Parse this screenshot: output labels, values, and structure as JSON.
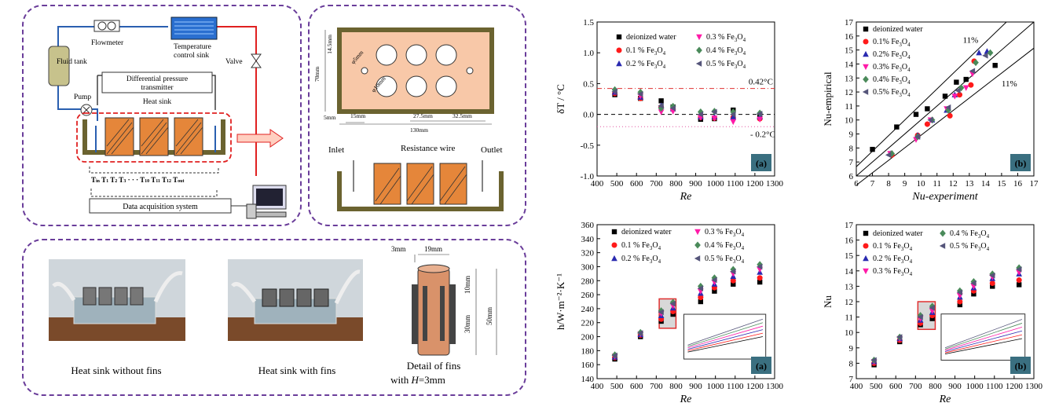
{
  "system": {
    "flowmeter": "Flowmeter",
    "temp_sink": [
      "Temperature",
      "control sink"
    ],
    "valve": "Valve",
    "fluid_tank": "Fluid tank",
    "pump": "Pump",
    "dp_transmitter": [
      "Differential pressure",
      "transmitter"
    ],
    "heat_sink": "Heat sink",
    "thermocouples": "T",
    "daq": "Data acquisition system"
  },
  "dims": {
    "d14": "14.5mm",
    "d5": "5mm",
    "d70": "70mm",
    "phi5": "φ5mm",
    "phi10": "φ10mm",
    "d5b": "5mm",
    "d15": "15mm",
    "d27": "27.5mm",
    "d32": "32.5mm",
    "d130": "130mm",
    "inlet": "Inlet",
    "wire": "Resistance  wire",
    "outlet": "Outlet"
  },
  "photos": {
    "cap1": "Heat sink without fins",
    "cap2": "Heat sink with fins",
    "cap3a": "Detail of fins",
    "cap3b": "with",
    "cap3c": "H",
    "cap3d": "=3mm",
    "d3": "3mm",
    "d19": "19mm",
    "d10": "10mm",
    "d30": "30mm",
    "d50": "50mm"
  },
  "colors": {
    "water": "#000000",
    "fe01": "#ff1a1a",
    "fe02": "#2a2ab0",
    "fe03": "#ff1aa8",
    "fe04": "#4a8a5a",
    "fe05": "#55557a",
    "panel_border": "#6a3d9a",
    "tag_bg": "#3a6f80"
  },
  "chart_data": [
    {
      "id": "dT",
      "type": "scatter",
      "tag": "(a)",
      "xlabel": "Re",
      "ylabel": "δT / °C",
      "xlim": [
        400,
        1300
      ],
      "ylim": [
        -1.0,
        1.5
      ],
      "xticks": [
        "400",
        "500",
        "600",
        "700",
        "800",
        "900",
        "1000",
        "1100",
        "1200",
        "1300"
      ],
      "yticks": [
        "-1.0",
        "-0.5",
        "0.0",
        "0.5",
        "1.0",
        "1.5"
      ],
      "annotations": [
        "0.42°C",
        "- 0.2°C"
      ],
      "series": [
        {
          "name": "deionized water",
          "x": [
            490,
            620,
            725,
            785,
            925,
            995,
            1090,
            1225
          ],
          "y": [
            0.32,
            0.26,
            0.22,
            0.12,
            -0.08,
            -0.07,
            0.07,
            -0.03
          ]
        },
        {
          "name": "0.1 % Fe3O4",
          "x": [
            490,
            620,
            725,
            785,
            925,
            995,
            1090,
            1225
          ],
          "y": [
            0.34,
            0.26,
            0.12,
            0.08,
            -0.05,
            -0.06,
            -0.05,
            -0.07
          ]
        },
        {
          "name": "0.2 % Fe3O4",
          "x": [
            490,
            620,
            725,
            785,
            925,
            995,
            1090,
            1225
          ],
          "y": [
            0.36,
            0.28,
            0.14,
            0.09,
            -0.04,
            -0.04,
            -0.04,
            -0.04
          ]
        },
        {
          "name": "0.3 % Fe3O4",
          "x": [
            490,
            620,
            725,
            785,
            925,
            995,
            1090,
            1225
          ],
          "y": [
            0.38,
            0.3,
            0.04,
            0.05,
            -0.05,
            -0.06,
            -0.12,
            -0.08
          ]
        },
        {
          "name": "0.4 % Fe3O4",
          "x": [
            490,
            620,
            725,
            785,
            925,
            995,
            1090,
            1225
          ],
          "y": [
            0.4,
            0.36,
            0.1,
            0.13,
            0.04,
            0.05,
            0.04,
            0.02
          ]
        },
        {
          "name": "0.5 % Fe3O4",
          "x": [
            490,
            620,
            725,
            785,
            925,
            995,
            1090,
            1225
          ],
          "y": [
            0.37,
            0.33,
            0.14,
            0.1,
            0.0,
            0.04,
            0.0,
            0.01
          ]
        }
      ]
    },
    {
      "id": "nuEmp",
      "type": "scatter",
      "tag": "(b)",
      "xlabel": "Nu-experiment",
      "ylabel": "Nu-empirical",
      "xlim": [
        6,
        17
      ],
      "ylim": [
        6,
        17
      ],
      "xticks": [
        "6",
        "7",
        "8",
        "9",
        "10",
        "11",
        "12",
        "13",
        "14",
        "15",
        "16",
        "17"
      ],
      "yticks": [
        "6",
        "7",
        "8",
        "9",
        "10",
        "11",
        "12",
        "13",
        "14",
        "15",
        "16",
        "17"
      ],
      "annotations": [
        "11%",
        "11%"
      ],
      "series": [
        {
          "name": "deionized water",
          "x": [
            7.0,
            8.5,
            9.7,
            10.4,
            11.5,
            12.2,
            12.8,
            14.6
          ],
          "y": [
            7.9,
            9.5,
            10.4,
            10.8,
            11.7,
            12.7,
            12.9,
            13.9
          ]
        },
        {
          "name": "0.1% Fe3O4",
          "x": [
            8.2,
            9.8,
            10.4,
            11.8,
            12.4,
            13.1,
            13.3
          ],
          "y": [
            7.5,
            8.9,
            9.7,
            10.3,
            11.8,
            12.5,
            14.2
          ]
        },
        {
          "name": "0.2% Fe3O4",
          "x": [
            8.1,
            9.8,
            10.7,
            11.6,
            12.1,
            13.6,
            14.1
          ],
          "y": [
            7.6,
            8.9,
            10.0,
            10.7,
            11.8,
            14.8,
            14.9
          ]
        },
        {
          "name": "0.3% Fe3O4",
          "x": [
            8.1,
            9.7,
            10.6,
            11.6,
            12.1,
            12.8,
            13.2
          ],
          "y": [
            7.6,
            8.6,
            10.0,
            10.8,
            11.7,
            12.3,
            13.3
          ]
        },
        {
          "name": "0.4% Fe3O4",
          "x": [
            8.2,
            9.8,
            10.7,
            11.7,
            12.5,
            13.4,
            14.3
          ],
          "y": [
            7.6,
            8.8,
            10.0,
            10.7,
            12.3,
            14.1,
            14.8
          ]
        },
        {
          "name": "0.5% Fe3O4",
          "x": [
            8.0,
            9.8,
            10.6,
            11.7,
            12.3,
            13.2,
            14.0
          ],
          "y": [
            7.5,
            8.8,
            10.0,
            10.9,
            12.1,
            13.5,
            14.6
          ]
        }
      ]
    },
    {
      "id": "h",
      "type": "scatter",
      "tag": "(a)",
      "xlabel": "Re",
      "ylabel": "h/W·m⁻²·K⁻¹",
      "xlim": [
        400,
        1300
      ],
      "ylim": [
        140,
        360
      ],
      "xticks": [
        "400",
        "500",
        "600",
        "700",
        "800",
        "900",
        "1000",
        "1100",
        "1200",
        "1300"
      ],
      "yticks": [
        "140",
        "160",
        "180",
        "200",
        "220",
        "240",
        "260",
        "280",
        "300",
        "320",
        "340",
        "360"
      ],
      "series": [
        {
          "name": "deionized water",
          "x": [
            490,
            620,
            725,
            785,
            925,
            995,
            1090,
            1225
          ],
          "y": [
            168,
            200,
            222,
            232,
            250,
            265,
            275,
            278
          ]
        },
        {
          "name": "0.1 % Fe3O4",
          "x": [
            490,
            620,
            725,
            785,
            925,
            995,
            1090,
            1225
          ],
          "y": [
            170,
            202,
            225,
            236,
            256,
            270,
            280,
            284
          ]
        },
        {
          "name": "0.2 % Fe3O4",
          "x": [
            490,
            620,
            725,
            785,
            925,
            995,
            1090,
            1225
          ],
          "y": [
            171,
            203,
            230,
            241,
            262,
            275,
            286,
            292
          ]
        },
        {
          "name": "0.3 % Fe3O4",
          "x": [
            490,
            620,
            725,
            785,
            925,
            995,
            1090,
            1225
          ],
          "y": [
            172,
            204,
            233,
            244,
            265,
            278,
            290,
            296
          ]
        },
        {
          "name": "0.4 % Fe3O4",
          "x": [
            490,
            620,
            725,
            785,
            925,
            995,
            1090,
            1225
          ],
          "y": [
            174,
            206,
            237,
            249,
            272,
            284,
            296,
            303
          ]
        },
        {
          "name": "0.5 % Fe3O4",
          "x": [
            490,
            620,
            725,
            785,
            925,
            995,
            1090,
            1225
          ],
          "y": [
            173,
            205,
            235,
            247,
            269,
            281,
            293,
            300
          ]
        }
      ]
    },
    {
      "id": "nu",
      "type": "scatter",
      "tag": "(b)",
      "xlabel": "Re",
      "ylabel": "Nu",
      "xlim": [
        400,
        1300
      ],
      "ylim": [
        7,
        17
      ],
      "xticks": [
        "400",
        "500",
        "600",
        "700",
        "800",
        "900",
        "1000",
        "1100",
        "1200",
        "1300"
      ],
      "yticks": [
        "7",
        "8",
        "9",
        "10",
        "11",
        "12",
        "13",
        "14",
        "15",
        "16",
        "17"
      ],
      "series": [
        {
          "name": "deionized water",
          "x": [
            490,
            620,
            725,
            785,
            925,
            995,
            1090,
            1225
          ],
          "y": [
            7.9,
            9.4,
            10.5,
            10.9,
            11.8,
            12.5,
            13.0,
            13.1
          ]
        },
        {
          "name": "0.1 % Fe3O4",
          "x": [
            490,
            620,
            725,
            785,
            925,
            995,
            1090,
            1225
          ],
          "y": [
            8.0,
            9.5,
            10.6,
            11.1,
            12.0,
            12.7,
            13.2,
            13.4
          ]
        },
        {
          "name": "0.2 % Fe3O4",
          "x": [
            490,
            620,
            725,
            785,
            925,
            995,
            1090,
            1225
          ],
          "y": [
            8.1,
            9.6,
            10.8,
            11.3,
            12.3,
            12.9,
            13.5,
            13.8
          ]
        },
        {
          "name": "0.3 % Fe3O4",
          "x": [
            490,
            620,
            725,
            785,
            925,
            995,
            1090,
            1225
          ],
          "y": [
            8.1,
            9.6,
            10.9,
            11.4,
            12.4,
            13.0,
            13.6,
            13.9
          ]
        },
        {
          "name": "0.4 % Fe3O4",
          "x": [
            490,
            620,
            725,
            785,
            925,
            995,
            1090,
            1225
          ],
          "y": [
            8.2,
            9.7,
            11.1,
            11.7,
            12.7,
            13.3,
            13.8,
            14.2
          ]
        },
        {
          "name": "0.5 % Fe3O4",
          "x": [
            490,
            620,
            725,
            785,
            925,
            995,
            1090,
            1225
          ],
          "y": [
            8.2,
            9.7,
            11.0,
            11.6,
            12.6,
            13.2,
            13.7,
            14.1
          ]
        }
      ]
    }
  ]
}
